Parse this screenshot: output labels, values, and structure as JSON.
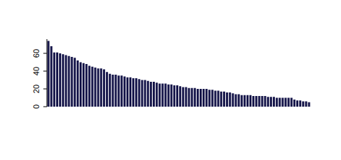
{
  "chart_data": {
    "type": "bar",
    "categories": [
      null,
      null,
      null,
      null,
      null,
      null,
      null,
      null,
      null,
      null,
      null,
      null,
      null,
      null,
      null,
      null,
      null,
      null,
      null,
      null,
      null,
      null,
      null,
      null,
      null,
      null,
      null,
      null,
      null,
      null,
      null,
      null,
      null,
      null,
      null,
      null,
      null,
      null,
      null,
      null,
      null,
      null,
      null,
      null,
      null,
      null,
      null,
      null,
      null,
      null,
      null,
      null,
      null,
      null,
      null,
      null,
      null,
      null,
      null,
      null,
      null,
      null,
      null,
      null,
      null,
      null,
      null,
      null,
      null,
      null,
      null,
      null,
      null,
      null,
      null,
      null,
      null,
      null,
      null,
      null,
      null,
      null,
      null,
      null,
      null,
      null,
      null,
      null,
      null,
      null
    ],
    "values": [
      74,
      68,
      61,
      61,
      60,
      59,
      58,
      57,
      56,
      55,
      52,
      50,
      49,
      48,
      46,
      45,
      44,
      43,
      43,
      42,
      39,
      37,
      36,
      36,
      35,
      35,
      34,
      33,
      33,
      32,
      32,
      31,
      30,
      30,
      29,
      28,
      28,
      27,
      26,
      26,
      26,
      25,
      25,
      24,
      24,
      23,
      22,
      22,
      21,
      21,
      21,
      20,
      20,
      20,
      20,
      19,
      19,
      18,
      18,
      17,
      17,
      16,
      16,
      15,
      14,
      14,
      13,
      13,
      13,
      13,
      12,
      12,
      12,
      12,
      12,
      11,
      11,
      11,
      10,
      10,
      10,
      10,
      10,
      10,
      8,
      7,
      7,
      6,
      6,
      5
    ],
    "color": "#16164a",
    "ylim": [
      0,
      76
    ],
    "yticks": [
      0,
      20,
      40,
      60
    ],
    "grid": false,
    "tick_labels": "y"
  }
}
